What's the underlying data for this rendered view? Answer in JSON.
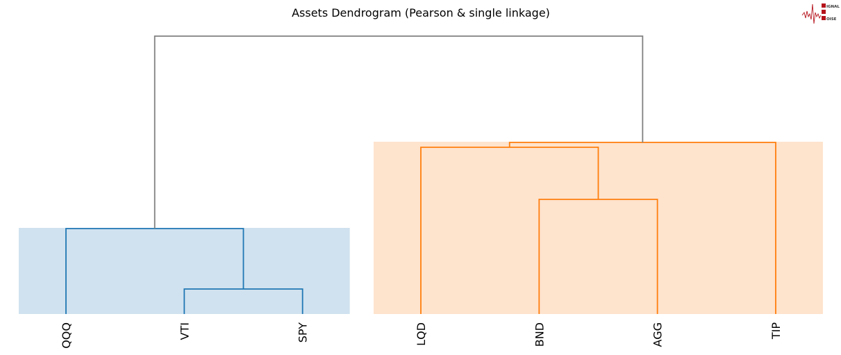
{
  "chart_data": {
    "type": "dendrogram",
    "title": "Assets Dendrogram (Pearson & single linkage)",
    "leaves": [
      "QQQ",
      "VTI",
      "SPY",
      "LQD",
      "BND",
      "AGG",
      "TIP"
    ],
    "merges": [
      {
        "left": 1,
        "right": 2,
        "height": 0.09,
        "color": "#1f77b4"
      },
      {
        "left": 0,
        "right": 7,
        "height": 0.3075,
        "color": "#1f77b4"
      },
      {
        "left": 4,
        "right": 5,
        "height": 0.4125,
        "color": "#ff7f0e"
      },
      {
        "left": 3,
        "right": 9,
        "height": 0.6,
        "color": "#ff7f0e"
      },
      {
        "left": 10,
        "right": 6,
        "height": 0.6175,
        "color": "#ff7f0e"
      },
      {
        "left": 8,
        "right": 11,
        "height": 1.0,
        "color": "#808080"
      }
    ],
    "clusters": [
      {
        "leaves": [
          0,
          1,
          2
        ],
        "color": "#1f77b4",
        "shade": "#d0e2ef"
      },
      {
        "leaves": [
          3,
          4,
          5,
          6
        ],
        "color": "#ff7f0e",
        "shade": "#fee3cd"
      }
    ],
    "ylim": [
      0,
      1.0
    ],
    "axes_visible": false,
    "grid": false
  },
  "logo": {
    "text": [
      "SIGNAL",
      "2",
      "NOISE"
    ],
    "color": "#b5121b"
  }
}
